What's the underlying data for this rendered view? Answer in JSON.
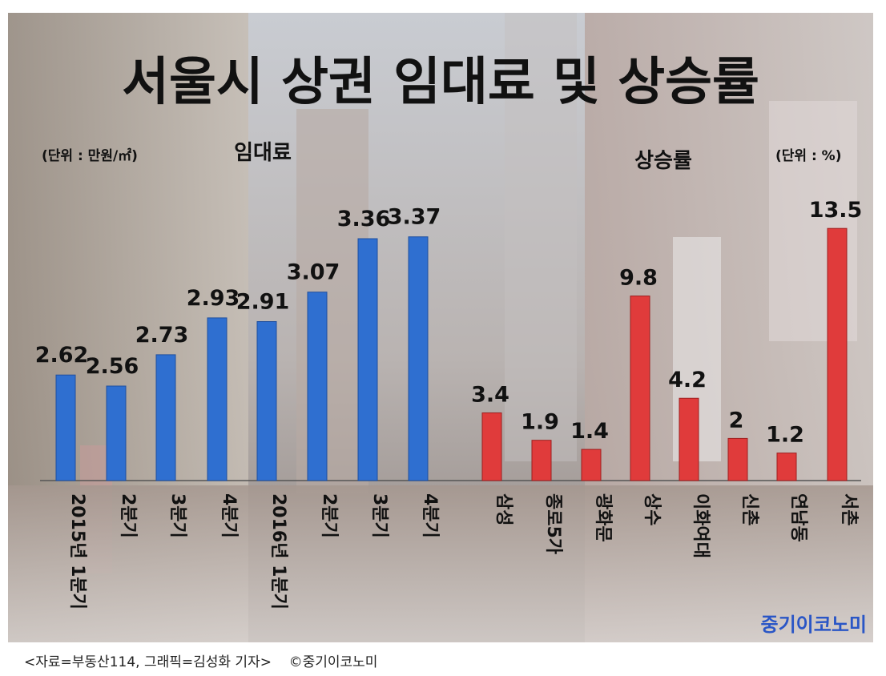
{
  "colors": {
    "rent_bar": "#2f6fd0",
    "rate_bar": "#e03b3b",
    "logo": "#2a56c6"
  },
  "logo_text": "중기이코노미",
  "caption": "<자료=부동산114, 그래픽=김성화 기자>    ©중기이코노미",
  "chart_data": [
    {
      "type": "bar",
      "title": "서울시 상권 임대료 및 상승률",
      "subtitle": "임대료",
      "unit": "(단위 : 만원/㎡)",
      "categories": [
        "2015년 1분기",
        "2분기",
        "3분기",
        "4분기",
        "2016년 1분기",
        "2분기",
        "3분기",
        "4분기"
      ],
      "values": [
        2.62,
        2.56,
        2.73,
        2.93,
        2.91,
        3.07,
        3.36,
        3.37
      ],
      "value_labels": [
        "2.62",
        "2.56",
        "2.73",
        "2.93",
        "2.91",
        "3.07",
        "3.36",
        "3.37"
      ],
      "grid": false
    },
    {
      "type": "bar",
      "subtitle": "상승률",
      "unit": "(단위 : %)",
      "categories": [
        "삼성",
        "종로5가",
        "광화문",
        "상수",
        "이화여대",
        "신촌",
        "연남동",
        "서촌"
      ],
      "values": [
        3.4,
        1.9,
        1.4,
        9.8,
        4.2,
        2,
        1.2,
        13.5
      ],
      "value_labels": [
        "3.4",
        "1.9",
        "1.4",
        "9.8",
        "4.2",
        "2",
        "1.2",
        "13.5"
      ],
      "grid": false
    }
  ]
}
